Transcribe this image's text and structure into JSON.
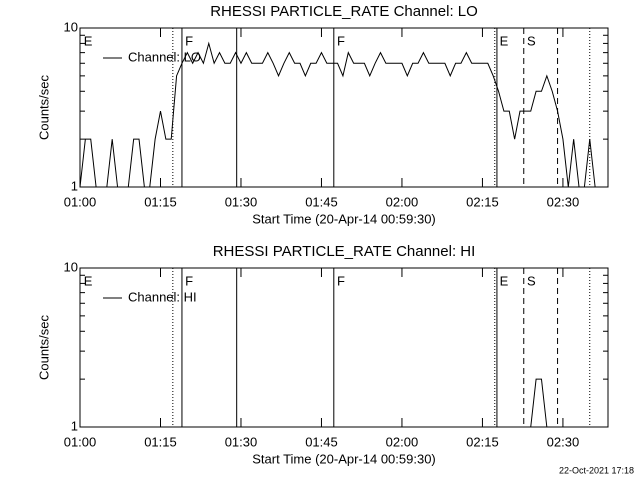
{
  "chart_data": [
    {
      "type": "line",
      "title": "RHESSI PARTICLE_RATE Channel: LO",
      "xlabel": "Start Time (20-Apr-14 00:59:30)",
      "ylabel": "Counts/sec",
      "log_y": true,
      "legend": "upper left",
      "color": "#000000",
      "xlim": [
        60,
        158.4
      ],
      "ylim": [
        1,
        10
      ],
      "xticks": [
        {
          "value": 60,
          "label": "01:00"
        },
        {
          "value": 75,
          "label": "01:15"
        },
        {
          "value": 90,
          "label": "01:30"
        },
        {
          "value": 105,
          "label": "01:45"
        },
        {
          "value": 120,
          "label": "02:00"
        },
        {
          "value": 135,
          "label": "02:15"
        },
        {
          "value": 150,
          "label": "02:30"
        }
      ],
      "yticks": [
        1,
        10
      ],
      "yminorticks": [
        2,
        3,
        4,
        5,
        6,
        7,
        8,
        9
      ],
      "vlines": [
        {
          "x": 77.3,
          "style": "dotted"
        },
        {
          "x": 79.0,
          "style": "solid"
        },
        {
          "x": 89.2,
          "style": "solid"
        },
        {
          "x": 107.3,
          "style": "solid"
        },
        {
          "x": 137.3,
          "style": "dotted"
        },
        {
          "x": 137.7,
          "style": "solid"
        },
        {
          "x": 142.7,
          "style": "dashed"
        },
        {
          "x": 149.0,
          "style": "dashed"
        },
        {
          "x": 155.0,
          "style": "dotted"
        }
      ],
      "annotations": [
        {
          "text": "E",
          "x": 60.7
        },
        {
          "text": "F",
          "x": 79.6
        },
        {
          "text": "F",
          "x": 107.9
        },
        {
          "text": "E",
          "x": 138.2
        },
        {
          "text": "S",
          "x": 143.3
        }
      ],
      "series": [
        {
          "name": "Channel: LO",
          "color": "#000000",
          "x": [
            60,
            61,
            62,
            63,
            64,
            65,
            66,
            67,
            68,
            69,
            70,
            71,
            72,
            73,
            74,
            75,
            76,
            77,
            78,
            79,
            80,
            81,
            82,
            83,
            84,
            85,
            86,
            87,
            88,
            89,
            90,
            91,
            92,
            93,
            94,
            95,
            96,
            97,
            98,
            99,
            100,
            101,
            102,
            103,
            104,
            105,
            106,
            107,
            108,
            109,
            110,
            111,
            112,
            113,
            114,
            115,
            116,
            117,
            118,
            119,
            120,
            121,
            122,
            123,
            124,
            125,
            126,
            127,
            128,
            129,
            130,
            131,
            132,
            133,
            134,
            135,
            136,
            137,
            138,
            139,
            140,
            141,
            142,
            143,
            144,
            145,
            146,
            147,
            148,
            149,
            150,
            151,
            152,
            153,
            154,
            155,
            156
          ],
          "values": [
            1,
            2,
            2,
            1,
            1,
            1,
            2,
            1,
            1,
            1,
            2,
            2,
            1,
            1,
            2,
            3,
            2,
            2,
            5,
            6,
            7,
            6,
            7,
            6,
            8,
            6,
            7,
            6,
            6,
            7,
            6,
            7,
            6,
            6,
            6,
            7,
            6,
            5,
            6,
            7,
            6,
            6,
            5,
            6,
            6,
            7,
            6,
            6,
            6,
            5,
            7,
            6,
            6,
            6,
            5,
            6,
            7,
            6,
            6,
            6,
            6,
            5,
            6,
            6,
            7,
            6,
            6,
            6,
            6,
            5,
            6,
            6,
            7,
            6,
            6,
            6,
            6,
            5,
            4,
            3,
            3,
            2,
            3,
            3,
            3,
            4,
            4,
            5,
            4,
            3,
            2,
            1,
            2,
            1,
            1,
            2,
            1
          ]
        }
      ]
    },
    {
      "type": "line",
      "title": "RHESSI PARTICLE_RATE Channel: HI",
      "xlabel": "Start Time (20-Apr-14 00:59:30)",
      "ylabel": "Counts/sec",
      "log_y": true,
      "legend": "upper left",
      "color": "#000000",
      "xlim": [
        60,
        158.4
      ],
      "ylim": [
        1,
        10
      ],
      "xticks": [
        {
          "value": 60,
          "label": "01:00"
        },
        {
          "value": 75,
          "label": "01:15"
        },
        {
          "value": 90,
          "label": "01:30"
        },
        {
          "value": 105,
          "label": "01:45"
        },
        {
          "value": 120,
          "label": "02:00"
        },
        {
          "value": 135,
          "label": "02:15"
        },
        {
          "value": 150,
          "label": "02:30"
        }
      ],
      "yticks": [
        1,
        10
      ],
      "yminorticks": [
        2,
        3,
        4,
        5,
        6,
        7,
        8,
        9
      ],
      "vlines": [
        {
          "x": 77.3,
          "style": "dotted"
        },
        {
          "x": 79.0,
          "style": "solid"
        },
        {
          "x": 89.2,
          "style": "solid"
        },
        {
          "x": 107.3,
          "style": "solid"
        },
        {
          "x": 137.3,
          "style": "dotted"
        },
        {
          "x": 137.7,
          "style": "solid"
        },
        {
          "x": 142.7,
          "style": "dashed"
        },
        {
          "x": 149.0,
          "style": "dashed"
        },
        {
          "x": 155.0,
          "style": "dotted"
        }
      ],
      "annotations": [
        {
          "text": "E",
          "x": 60.7
        },
        {
          "text": "F",
          "x": 79.6
        },
        {
          "text": "F",
          "x": 107.9
        },
        {
          "text": "E",
          "x": 138.2
        },
        {
          "text": "S",
          "x": 143.3
        }
      ],
      "series": [
        {
          "name": "Channel: HI",
          "color": "#000000",
          "x": [
            143,
            144,
            145,
            146,
            147
          ],
          "values": [
            1,
            1,
            2,
            2,
            1
          ]
        }
      ]
    }
  ],
  "footer": "22-Oct-2021 17:18"
}
